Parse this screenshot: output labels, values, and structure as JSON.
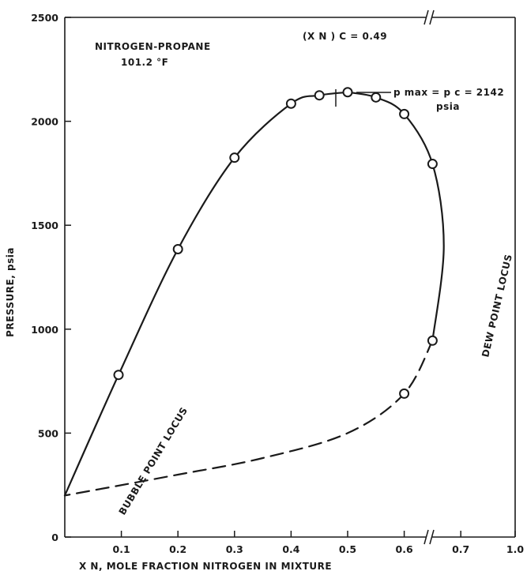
{
  "chart_data": {
    "type": "line",
    "title": "NITROGEN-PROPANE",
    "subtitle": "101.2 °F",
    "xlabel": "X N, MOLE FRACTION NITROGEN IN MIXTURE",
    "ylabel": "PRESSURE, psia",
    "xlim": [
      0,
      1.0
    ],
    "ylim": [
      0,
      2500
    ],
    "x_ticks": [
      "0.1",
      "0.2",
      "0.3",
      "0.4",
      "0.5",
      "0.6",
      "0.7",
      "1.0"
    ],
    "y_ticks": [
      "0",
      "500",
      "1000",
      "1500",
      "2000",
      "2500"
    ],
    "axis_break": "between 0.7 and 1.0",
    "grid": false,
    "series": [
      {
        "name": "BUBBLE POINT LOCUS",
        "style": "solid",
        "points": [
          {
            "x": 0.0,
            "y": 200
          },
          {
            "x": 0.095,
            "y": 780
          },
          {
            "x": 0.2,
            "y": 1385
          },
          {
            "x": 0.3,
            "y": 1825
          },
          {
            "x": 0.4,
            "y": 2085
          },
          {
            "x": 0.45,
            "y": 2125
          },
          {
            "x": 0.5,
            "y": 2140
          }
        ]
      },
      {
        "name": "DEW POINT LOCUS",
        "style": "solid",
        "points": [
          {
            "x": 0.5,
            "y": 2140
          },
          {
            "x": 0.55,
            "y": 2115
          },
          {
            "x": 0.6,
            "y": 2035
          },
          {
            "x": 0.65,
            "y": 1795
          },
          {
            "x": 0.67,
            "y": 1400
          },
          {
            "x": 0.65,
            "y": 945
          }
        ]
      },
      {
        "name": "",
        "style": "dashed",
        "points": [
          {
            "x": 0.65,
            "y": 945
          },
          {
            "x": 0.6,
            "y": 690
          },
          {
            "x": 0.5,
            "y": 500
          },
          {
            "x": 0.35,
            "y": 380
          },
          {
            "x": 0.2,
            "y": 300
          },
          {
            "x": 0.0,
            "y": 200
          }
        ]
      }
    ],
    "markers": [
      {
        "x": 0.095,
        "y": 780
      },
      {
        "x": 0.2,
        "y": 1385
      },
      {
        "x": 0.3,
        "y": 1825
      },
      {
        "x": 0.4,
        "y": 2085
      },
      {
        "x": 0.45,
        "y": 2125
      },
      {
        "x": 0.5,
        "y": 2140
      },
      {
        "x": 0.55,
        "y": 2115
      },
      {
        "x": 0.6,
        "y": 2035
      },
      {
        "x": 0.65,
        "y": 1795
      },
      {
        "x": 0.65,
        "y": 945
      },
      {
        "x": 0.6,
        "y": 690
      }
    ],
    "annotations": {
      "critical_x": "(X N ) C = 0.49",
      "pmax_line1": "p max = p c = 2142",
      "pmax_line2": "psia",
      "bubble_label": "BUBBLE POINT LOCUS",
      "dew_label": "DEW POINT LOCUS"
    }
  }
}
